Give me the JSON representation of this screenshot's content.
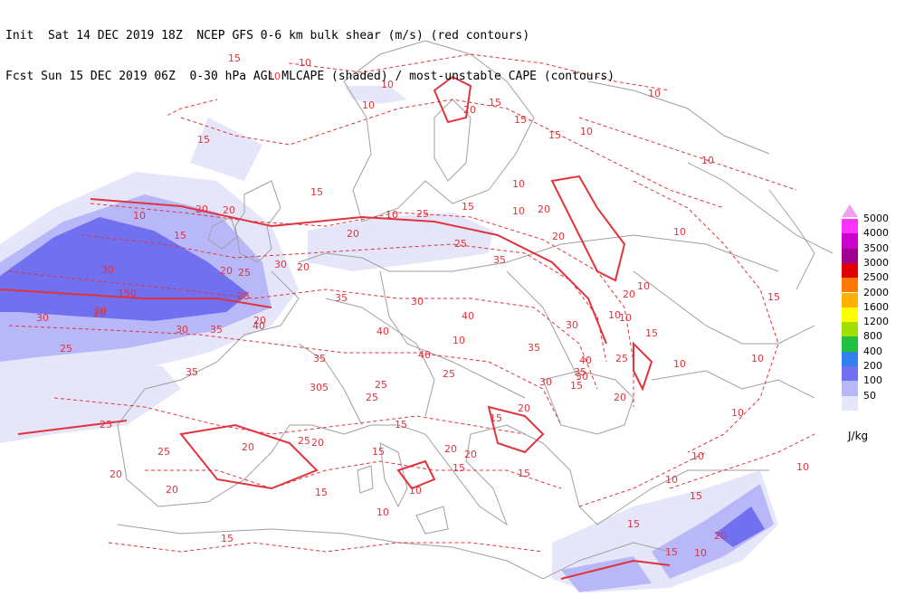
{
  "header": {
    "line1": "Init  Sat 14 DEC 2019 18Z  NCEP GFS 0-6 km bulk shear (m/s) (red contours)",
    "line2": "Fcst Sun 15 DEC 2019 06Z  0-30 hPa AGL MLCAPE (shaded) / most-unstable CAPE (contours)"
  },
  "legend": {
    "unit": "J/kg",
    "levels": [
      {
        "label": "5000",
        "color": "#ff33ff"
      },
      {
        "label": "4000",
        "color": "#cc00cc"
      },
      {
        "label": "3500",
        "color": "#a00090"
      },
      {
        "label": "3000",
        "color": "#e00000"
      },
      {
        "label": "2500",
        "color": "#ff7800"
      },
      {
        "label": "2000",
        "color": "#ffb000"
      },
      {
        "label": "1600",
        "color": "#ffff00"
      },
      {
        "label": "1200",
        "color": "#a0e000"
      },
      {
        "label": "800",
        "color": "#20c040"
      },
      {
        "label": "400",
        "color": "#3080f0"
      },
      {
        "label": "200",
        "color": "#7070f0"
      },
      {
        "label": "100",
        "color": "#b8b8f8"
      },
      {
        "label": "50",
        "color": "#e6e6fa"
      }
    ],
    "tip_color": "#f0a0f0"
  },
  "map": {
    "contour_color": "#e0343c",
    "coast_color": "#a0a0a0",
    "shear_labels": [
      {
        "text": "15"
      },
      {
        "text": "10"
      },
      {
        "text": "15"
      },
      {
        "text": "10"
      },
      {
        "text": "10"
      },
      {
        "text": "20"
      },
      {
        "text": "15"
      },
      {
        "text": "10"
      },
      {
        "text": "15"
      },
      {
        "text": "15"
      },
      {
        "text": "10"
      },
      {
        "text": "10"
      },
      {
        "text": "10"
      },
      {
        "text": "10"
      },
      {
        "text": "20"
      },
      {
        "text": "15"
      },
      {
        "text": "10"
      },
      {
        "text": "15"
      },
      {
        "text": "20"
      },
      {
        "text": "10"
      },
      {
        "text": "15"
      },
      {
        "text": "25"
      },
      {
        "text": "20"
      },
      {
        "text": "10"
      },
      {
        "text": "20"
      },
      {
        "text": "10"
      },
      {
        "text": "10"
      },
      {
        "text": "35"
      },
      {
        "text": "25"
      },
      {
        "text": "20"
      },
      {
        "text": "30"
      },
      {
        "text": "25"
      },
      {
        "text": "20"
      },
      {
        "text": "30"
      },
      {
        "text": "20"
      },
      {
        "text": "25"
      },
      {
        "text": "30"
      },
      {
        "text": "40"
      },
      {
        "text": "35"
      },
      {
        "text": "150"
      },
      {
        "text": "20"
      },
      {
        "text": "20"
      },
      {
        "text": "30"
      },
      {
        "text": "30"
      },
      {
        "text": "35"
      },
      {
        "text": "25"
      },
      {
        "text": "40"
      },
      {
        "text": "40"
      },
      {
        "text": "35"
      },
      {
        "text": "35"
      },
      {
        "text": "40"
      },
      {
        "text": "35"
      },
      {
        "text": "35"
      },
      {
        "text": "30"
      },
      {
        "text": "30"
      },
      {
        "text": "30"
      },
      {
        "text": "305"
      },
      {
        "text": "25"
      },
      {
        "text": "25"
      },
      {
        "text": "25"
      },
      {
        "text": "40"
      },
      {
        "text": "20"
      },
      {
        "text": "20"
      },
      {
        "text": "15"
      },
      {
        "text": "15"
      },
      {
        "text": "20"
      },
      {
        "text": "25"
      },
      {
        "text": "20"
      },
      {
        "text": "25"
      },
      {
        "text": "15"
      },
      {
        "text": "20"
      },
      {
        "text": "20"
      },
      {
        "text": "20"
      },
      {
        "text": "10"
      },
      {
        "text": "15"
      },
      {
        "text": "15"
      },
      {
        "text": "10"
      },
      {
        "text": "15"
      },
      {
        "text": "15"
      },
      {
        "text": "20"
      },
      {
        "text": "15"
      },
      {
        "text": "10"
      },
      {
        "text": "10"
      },
      {
        "text": "10"
      },
      {
        "text": "15"
      },
      {
        "text": "10"
      },
      {
        "text": "15"
      },
      {
        "text": "20"
      },
      {
        "text": "25"
      },
      {
        "text": "20"
      },
      {
        "text": "10"
      },
      {
        "text": "10"
      },
      {
        "text": "25"
      },
      {
        "text": "15"
      },
      {
        "text": "20"
      },
      {
        "text": "10"
      },
      {
        "text": "10"
      },
      {
        "text": "15"
      },
      {
        "text": "10"
      },
      {
        "text": "15"
      },
      {
        "text": "10"
      }
    ]
  }
}
